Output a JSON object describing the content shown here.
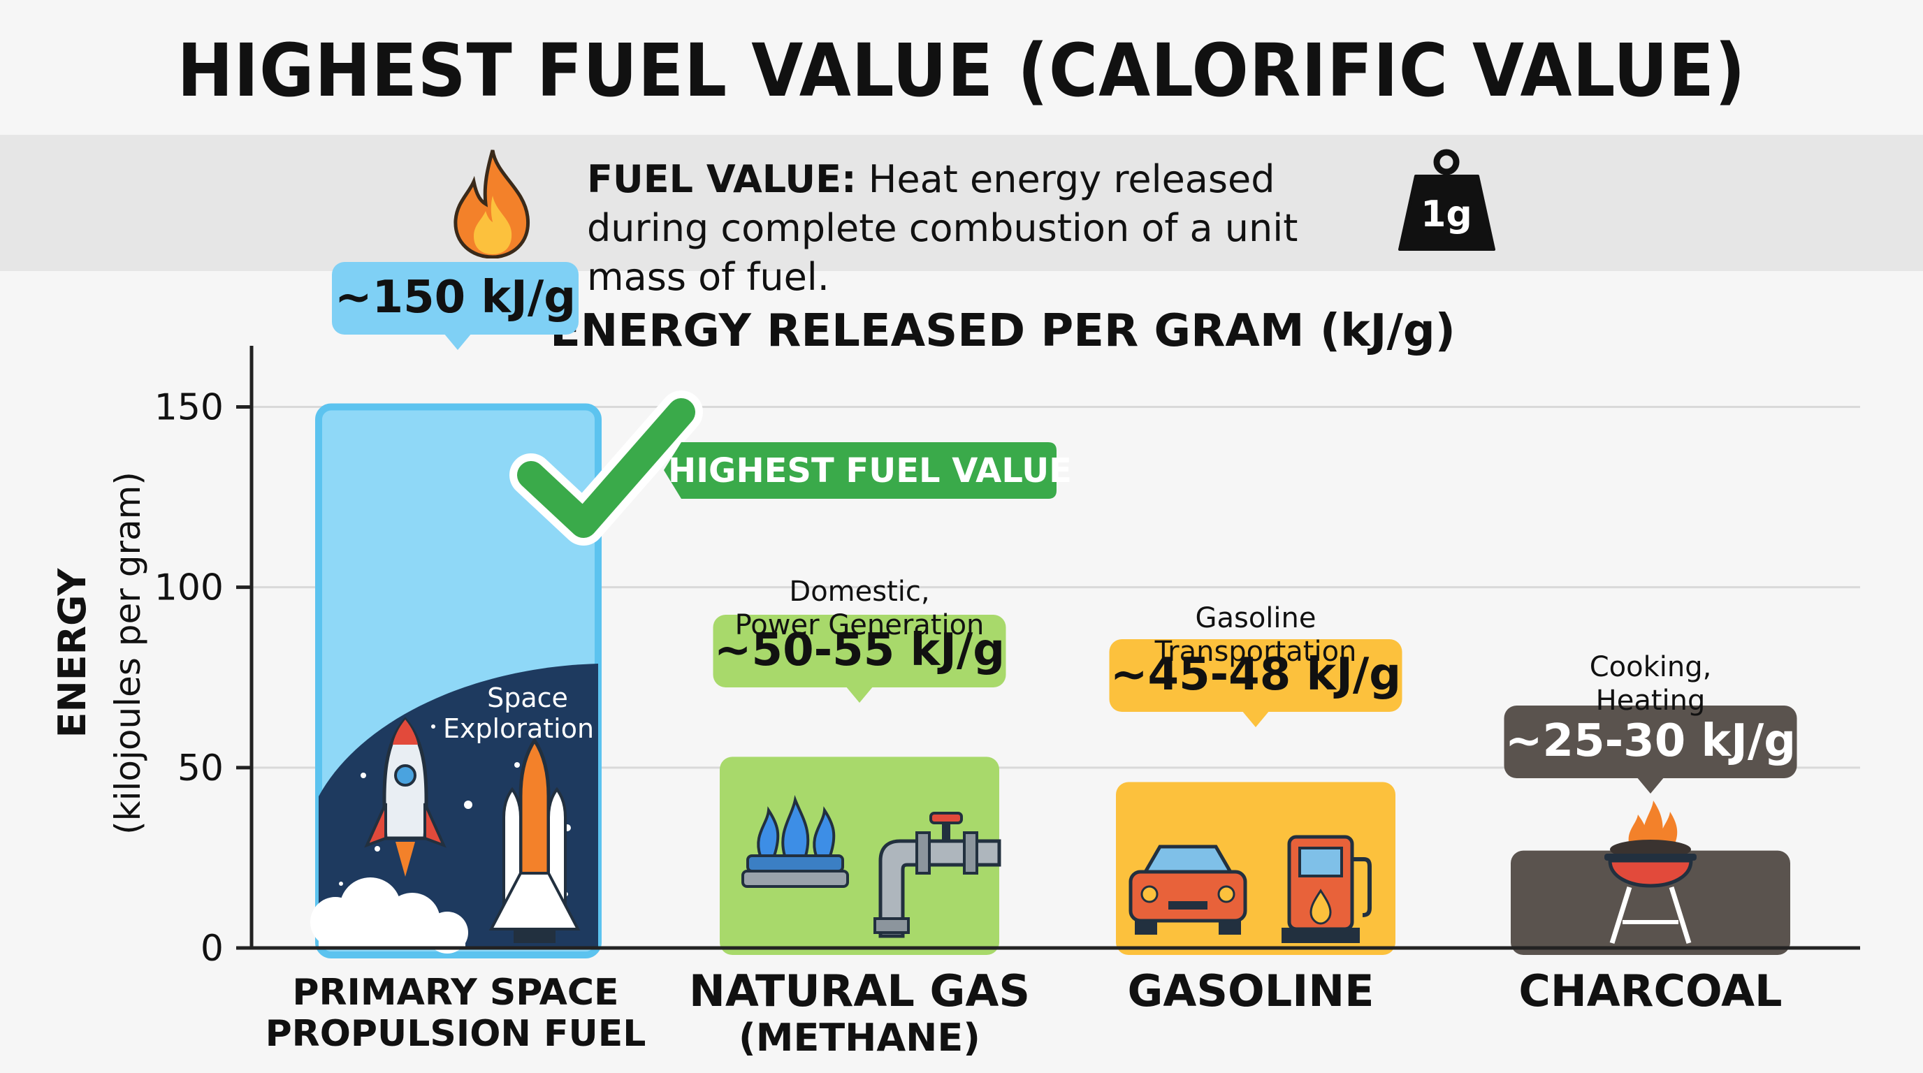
{
  "title": "HIGHEST FUEL VALUE (CALORIFIC VALUE)",
  "definition": {
    "term": "FUEL VALUE:",
    "text": "Heat energy released during complete combustion of a unit mass of fuel.",
    "weight_label": "1g",
    "icons": [
      "flame-icon",
      "weight-icon"
    ]
  },
  "chart_data": {
    "type": "bar",
    "title": "ENERGY RELEASED PER GRAM (kJ/g)",
    "ylabel_main": "ENERGY",
    "ylabel_sub": "(kilojoules per gram)",
    "ylim": [
      0,
      165
    ],
    "yticks": [
      0,
      50,
      100,
      150
    ],
    "grid": true,
    "categories": [
      {
        "line1": "PRIMARY SPACE",
        "line2": "PROPULSION FUEL"
      },
      {
        "line1": "NATURAL GAS",
        "line2": "(METHANE)"
      },
      {
        "line1": "GASOLINE",
        "line2": ""
      },
      {
        "line1": "CHARCOAL",
        "line2": ""
      }
    ],
    "values": [
      150,
      53,
      46,
      27
    ],
    "value_labels": [
      "~150 kJ/g",
      "~50-55 kJ/g",
      "~45-48 kJ/g",
      "~25-30 kJ/g"
    ],
    "uses": [
      [
        "Space",
        "Exploration"
      ],
      [
        "Domestic,",
        "Power Generation"
      ],
      [
        "Gasoline",
        "Transportation"
      ],
      [
        "Cooking,",
        "Heating"
      ]
    ],
    "colors": {
      "bar": [
        "#8fd8f7",
        "#a8d96b",
        "#fcc13d",
        "#5a534e"
      ],
      "label_bg": [
        "#7fd0f5",
        "#a8d96b",
        "#fcc13d",
        "#5a534e"
      ],
      "label_fg": [
        "#111111",
        "#111111",
        "#111111",
        "#ffffff"
      ],
      "highlight": "#3aaa4a",
      "axis": "#222222",
      "grid": "#d9d9d9"
    },
    "highlight_label": "HIGHEST FUEL VALUE",
    "icons": [
      "rocket-icon",
      "space-shuttle-icon",
      "gas-burner-icon",
      "gas-pipe-icon",
      "car-icon",
      "fuel-pump-icon",
      "charcoal-grill-icon",
      "checkmark-icon"
    ]
  }
}
